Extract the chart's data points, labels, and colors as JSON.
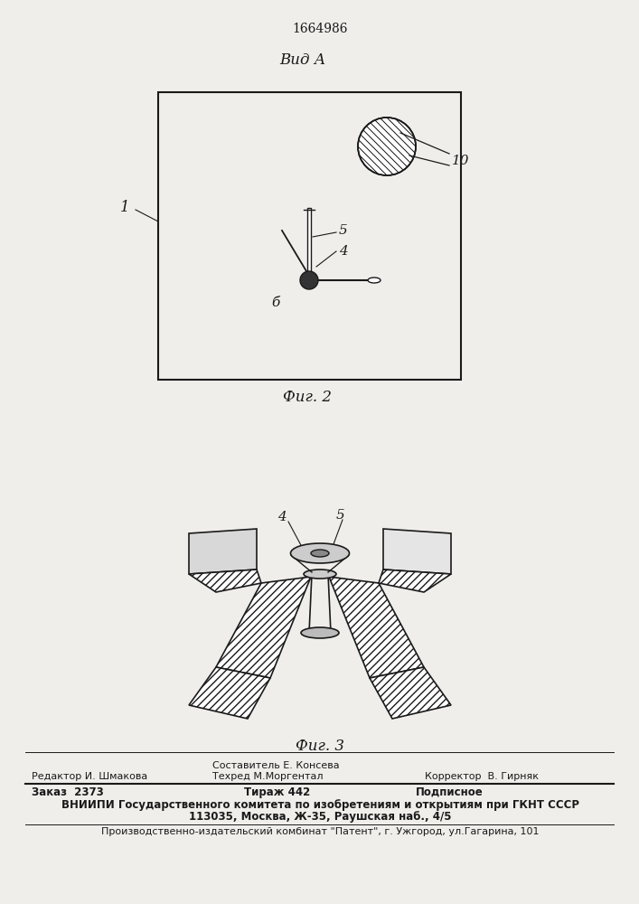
{
  "patent_number": "1664986",
  "fig2_label": "Фиг. 2",
  "fig3_label": "Фиг. 3",
  "view_label": "Вид А",
  "label_1": "1",
  "label_4": "4",
  "label_5": "5",
  "label_6": "б",
  "label_10": "10",
  "footer_line1_left": "Редактор И. Шмакова",
  "footer_line1_mid": "Техред М.Моргентал",
  "footer_line1_right": "Корректор  В. Гирняк",
  "footer_sestavitel": "Составитель Е. Консева",
  "footer_line2_left": "Заказ  2373",
  "footer_line2_mid": "Тираж 442",
  "footer_line2_right": "Подписное",
  "footer_line3": "ВНИИПИ Государственного комитета по изобретениям и открытиям при ГКНТ СССР",
  "footer_line4": "113035, Москва, Ж-35, Раушская наб., 4/5",
  "footer_line5": "Производственно-издательский комбинат \"Патент\", г. Ужгород, ул.Гагарина, 101",
  "bg_color": "#f0eeeb",
  "line_color": "#1a1a1a"
}
